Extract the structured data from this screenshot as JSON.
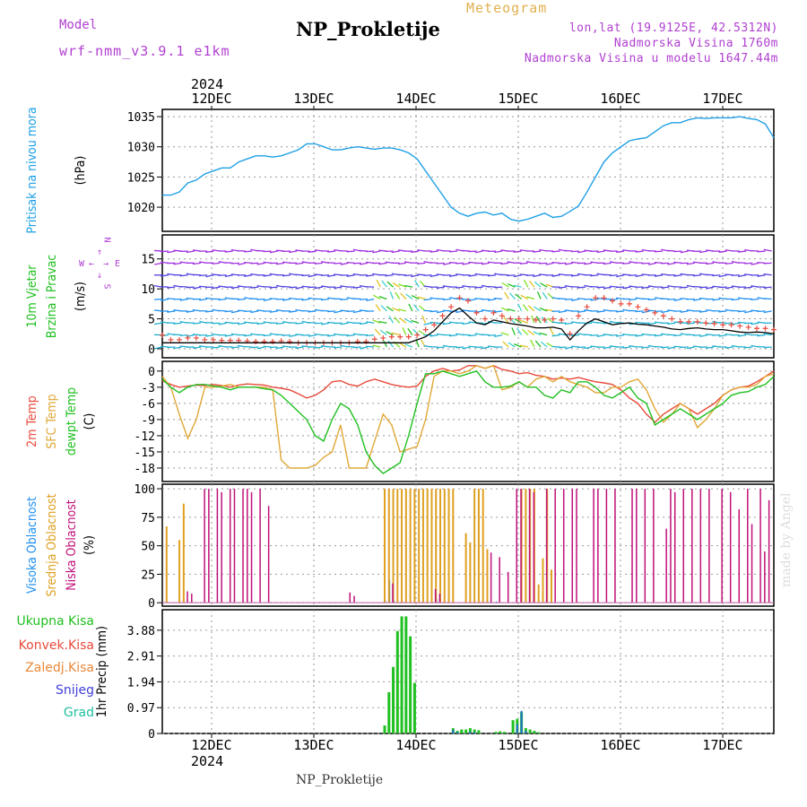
{
  "header": {
    "title": "NP_Prokletije",
    "meteogram_label": "Meteogram",
    "model_label": "Model",
    "model_value": "wrf-nmm_v3.9.1 e1km",
    "lonlat": "lon,lat (19.9125E, 42.5312N)",
    "elevation": "Nadmorska Visina 1760m",
    "model_elevation": "Nadmorska Visina u modelu 1647.44m"
  },
  "footer": {
    "station": "NP_Prokletije",
    "credit": "made by Angel"
  },
  "wind_key": {
    "north": "N",
    "south": "S",
    "west": "W",
    "east": "E"
  },
  "colors": {
    "pressure": "#1ea0e6",
    "temp2m": "#e84a3c",
    "sfcTemp": "#e0a838",
    "dewpt": "#20c020",
    "high_cloud": "#2090f0",
    "mid_cloud": "#e0a020",
    "low_cloud": "#c0107a",
    "precip_total": "#20c020",
    "precip_grad": "#2070d0",
    "wind_mean": "#000000",
    "wind_gust": "#e84a3c"
  },
  "chart_data": [
    {
      "type": "line",
      "panel": "pressure",
      "ylabel": [
        "Pritisak na nivou mora",
        "(hPa)"
      ],
      "ylabel_colors": [
        "#1ea0e6",
        "#000000"
      ],
      "yticks": [
        1020,
        1025,
        1030,
        1035
      ],
      "ylim": [
        1016,
        1036.2
      ],
      "top_year": "2024",
      "bottom_year": "2024",
      "date_labels": [
        "12DEC",
        "13DEC",
        "14DEC",
        "15DEC",
        "16DEC",
        "17DEC"
      ],
      "x_range_hours": [
        0,
        143
      ],
      "grid": true,
      "series": [
        {
          "values": [
            1022,
            1022,
            1022.5,
            1024,
            1024.5,
            1025.5,
            1026,
            1026.5,
            1026.5,
            1027.5,
            1028,
            1028.5,
            1028.5,
            1028.3,
            1028.5,
            1029,
            1029.5,
            1030.5,
            1030.5,
            1030,
            1029.5,
            1029.5,
            1029.8,
            1030,
            1029.8,
            1029.6,
            1029.8,
            1029.8,
            1029.5,
            1029,
            1028,
            1026,
            1024,
            1022,
            1020,
            1019,
            1018.5,
            1019,
            1019.2,
            1018.7,
            1019,
            1018,
            1017.7,
            1018,
            1018.5,
            1019,
            1018.3,
            1018.5,
            1019.3,
            1020.2,
            1022.5,
            1025,
            1027.5,
            1029,
            1030,
            1031,
            1031.3,
            1031.5,
            1032.5,
            1033.5,
            1034,
            1034,
            1034.5,
            1034.8,
            1034.7,
            1034.8,
            1034.8,
            1034.8,
            1035,
            1034.7,
            1034.5,
            1033.8,
            1031.5
          ]
        }
      ]
    },
    {
      "type": "line",
      "panel": "wind",
      "ylabel": [
        "10m Vjetar",
        "Brzina i Pravac",
        "(m/s)"
      ],
      "ylabel_colors": [
        "#20c020",
        "#20c020",
        "#000000"
      ],
      "yticks": [
        0,
        5,
        10,
        15
      ],
      "ylim": [
        -1.5,
        19
      ],
      "grid": true,
      "series": [
        {
          "name": "mean",
          "values": [
            1,
            1,
            1,
            1,
            1,
            1,
            1,
            1,
            1,
            1,
            1,
            1,
            1,
            1,
            1,
            1,
            1,
            1,
            1,
            1,
            1,
            1,
            1,
            1,
            1,
            1,
            1,
            1,
            1,
            1,
            1.5,
            2,
            3,
            4.5,
            6,
            6.8,
            5.5,
            4.3,
            4,
            4.8,
            4.5,
            4.2,
            4,
            3.8,
            3.5,
            3.5,
            3.6,
            3.3,
            1.5,
            3,
            4.3,
            5,
            4.5,
            4,
            4.2,
            4.3,
            4.1,
            4,
            3.8,
            3.6,
            3.3,
            3.2,
            3.4,
            3.5,
            3.3,
            3.2,
            3.2,
            3,
            2.8,
            2.7,
            2.8,
            2.7,
            2.5
          ]
        },
        {
          "name": "gust",
          "values": [
            2.3,
            1.5,
            1.5,
            1.8,
            1.8,
            1.5,
            1.5,
            1.4,
            1.4,
            1.4,
            1.3,
            1.2,
            1.2,
            1.2,
            1.3,
            1.2,
            1,
            1,
            1,
            1,
            1,
            1,
            1,
            1.2,
            1.2,
            1.6,
            1.8,
            2,
            2,
            2,
            2.3,
            3.2,
            4,
            5.5,
            7,
            8.5,
            8,
            6,
            5,
            6,
            5.5,
            5,
            5,
            5,
            4.8,
            4.8,
            5,
            4.8,
            2.5,
            5.5,
            7,
            8.5,
            8.5,
            8,
            7.5,
            7.5,
            7,
            6.5,
            6,
            5.5,
            5,
            4.5,
            4.5,
            4.5,
            4.3,
            4.2,
            4,
            4,
            3.8,
            3.6,
            3.4,
            3.4,
            3.2
          ]
        }
      ]
    },
    {
      "type": "line",
      "panel": "temperature",
      "ylabel": [
        "2m Temp",
        "SFC Temp",
        "dewpt Temp",
        "(C)"
      ],
      "ylabel_colors": [
        "#e84a3c",
        "#e0a838",
        "#20c020",
        "#000000"
      ],
      "yticks": [
        0,
        -3,
        -6,
        -9,
        -12,
        -15,
        -18
      ],
      "ylim": [
        -20.5,
        1.8
      ],
      "grid": true,
      "series": [
        {
          "name": "2m Temp",
          "values": [
            -1.8,
            -2.5,
            -3,
            -2.8,
            -2.6,
            -2.7,
            -2.5,
            -2.7,
            -3,
            -2.6,
            -2.4,
            -2.5,
            -2.6,
            -3,
            -3.2,
            -3.5,
            -4.2,
            -5,
            -4.5,
            -3.5,
            -2,
            -1.8,
            -2.5,
            -2.8,
            -2,
            -1.5,
            -2,
            -2.5,
            -2.8,
            -3,
            -2.8,
            -1,
            0,
            0.5,
            0,
            0.2,
            1,
            1,
            0.5,
            1,
            0.3,
            0,
            -0.5,
            -0.3,
            -0.8,
            -1,
            -1.5,
            -1.3,
            -1.5,
            -1.2,
            -1.6,
            -2,
            -2.2,
            -2.5,
            -3.5,
            -5,
            -6,
            -8,
            -9.5,
            -8,
            -7,
            -6,
            -7,
            -8,
            -7,
            -6,
            -4.5,
            -3.5,
            -3,
            -2.8,
            -2,
            -1,
            0
          ]
        },
        {
          "name": "SFC Temp",
          "values": [
            -1,
            -3,
            -8,
            -12.5,
            -9,
            -3,
            -3,
            -2.8,
            -2.5,
            -3,
            -3,
            -3,
            -3,
            -3.5,
            -16.5,
            -18,
            -18,
            -18,
            -17.5,
            -16,
            -15,
            -10,
            -18,
            -18,
            -18,
            -13,
            -8,
            -10,
            -15,
            -14.5,
            -14,
            -9,
            -1,
            0,
            0,
            -0.5,
            0,
            1,
            0.5,
            1,
            -3.5,
            -3,
            -2,
            -3,
            -1.5,
            -1,
            -2,
            -1,
            -2,
            -2.5,
            -3,
            -4,
            -4,
            -3,
            -3,
            -2,
            -1.5,
            -3.5,
            -7,
            -9.5,
            -8,
            -6,
            -7,
            -10.5,
            -9,
            -7,
            -4.5,
            -3.5,
            -3,
            -3,
            -2.5,
            -1,
            -0.5
          ]
        },
        {
          "name": "dewpt Temp",
          "values": [
            -1.5,
            -3,
            -4,
            -3,
            -2.5,
            -2.5,
            -2.8,
            -3,
            -3.5,
            -3,
            -3,
            -3,
            -3.3,
            -3.5,
            -4.5,
            -6,
            -7.5,
            -9,
            -12,
            -13,
            -9,
            -6,
            -7,
            -10,
            -15,
            -17.5,
            -19,
            -18,
            -17,
            -12,
            -6,
            -0.5,
            -0.5,
            0,
            -0.5,
            -1,
            -0.5,
            0,
            -2,
            -3,
            -3,
            -2.8,
            -2,
            -3,
            -3,
            -4.5,
            -5,
            -3.5,
            -4,
            -2,
            -2,
            -3,
            -4.5,
            -5,
            -4,
            -3,
            -5,
            -6,
            -10,
            -9,
            -8,
            -7,
            -8,
            -9,
            -8,
            -7,
            -6,
            -4.5,
            -4,
            -3.8,
            -3,
            -2.5,
            -1
          ]
        }
      ]
    },
    {
      "type": "bar",
      "panel": "cloud",
      "ylabel": [
        "Visoka Oblacnost",
        "Srednja Oblacnost",
        "Niska Oblacnost",
        "(%)"
      ],
      "ylabel_colors": [
        "#2090f0",
        "#e0a020",
        "#c0107a",
        "#000000"
      ],
      "yticks": [
        0,
        25,
        50,
        75,
        100
      ],
      "ylim": [
        -3,
        104
      ],
      "grid": true,
      "series": [
        {
          "name": "Visoka Oblacnost",
          "values": [
            [
              52,
              2
            ],
            [
              53,
              20
            ],
            [
              54,
              2
            ],
            [
              64,
              3
            ],
            [
              78,
              1
            ]
          ]
        },
        {
          "name": "Srednja Oblacnost",
          "values": [
            [
              1,
              67
            ],
            [
              4,
              55
            ],
            [
              5,
              87
            ],
            [
              52,
              100
            ],
            [
              53,
              100
            ],
            [
              54,
              100
            ],
            [
              55,
              100
            ],
            [
              56,
              100
            ],
            [
              57,
              100
            ],
            [
              58,
              100
            ],
            [
              59,
              100
            ],
            [
              60,
              100
            ],
            [
              61,
              100
            ],
            [
              62,
              100
            ],
            [
              63,
              100
            ],
            [
              64,
              100
            ],
            [
              65,
              100
            ],
            [
              66,
              100
            ],
            [
              67,
              100
            ],
            [
              68,
              100
            ],
            [
              71,
              61
            ],
            [
              72,
              53
            ],
            [
              73,
              100
            ],
            [
              74,
              100
            ],
            [
              75,
              100
            ],
            [
              76,
              47
            ],
            [
              84,
              100
            ],
            [
              85,
              100
            ],
            [
              86,
              100
            ],
            [
              87,
              100
            ],
            [
              88,
              16
            ],
            [
              89,
              39
            ],
            [
              90,
              100
            ],
            [
              91,
              29
            ]
          ]
        },
        {
          "name": "Niska Oblacnost",
          "values": [
            [
              6,
              10
            ],
            [
              7,
              8
            ],
            [
              10,
              100
            ],
            [
              11,
              100
            ],
            [
              13,
              100
            ],
            [
              14,
              97
            ],
            [
              16,
              100
            ],
            [
              17,
              100
            ],
            [
              19,
              100
            ],
            [
              20,
              100
            ],
            [
              21,
              97
            ],
            [
              23,
              100
            ],
            [
              25,
              85
            ],
            [
              44,
              9
            ],
            [
              45,
              6
            ],
            [
              54,
              17
            ],
            [
              64,
              12
            ],
            [
              65,
              8
            ],
            [
              77,
              44
            ],
            [
              79,
              40
            ],
            [
              81,
              27
            ],
            [
              83,
              100
            ],
            [
              84,
              100
            ],
            [
              86,
              100
            ],
            [
              87,
              97
            ],
            [
              90,
              100
            ],
            [
              92,
              100
            ],
            [
              94,
              100
            ],
            [
              96,
              100
            ],
            [
              97,
              100
            ],
            [
              101,
              100
            ],
            [
              102,
              100
            ],
            [
              104,
              100
            ],
            [
              106,
              100
            ],
            [
              110,
              100
            ],
            [
              111,
              100
            ],
            [
              113,
              100
            ],
            [
              115,
              100
            ],
            [
              118,
              65
            ],
            [
              119,
              100
            ],
            [
              120,
              97
            ],
            [
              122,
              100
            ],
            [
              124,
              100
            ],
            [
              126,
              100
            ],
            [
              128,
              100
            ],
            [
              131,
              100
            ],
            [
              133,
              97
            ],
            [
              135,
              82
            ],
            [
              137,
              100
            ],
            [
              138,
              69
            ],
            [
              140,
              100
            ],
            [
              141,
              45
            ],
            [
              142,
              90
            ]
          ]
        }
      ]
    },
    {
      "type": "bar",
      "panel": "precip",
      "ylabel": [
        "1hr Precip (mm)"
      ],
      "ylabel_colors": [
        "#000000"
      ],
      "legend": [
        "Ukupna Kisa",
        "Konvek.Kisa",
        "Zaledj.Kisa",
        "Snijeg",
        "Grad"
      ],
      "legend_colors": [
        "#20c020",
        "#e84a3c",
        "#e8883a",
        "#4040d8",
        "#20c0a0"
      ],
      "yticks": [
        0,
        0.97,
        1.94,
        2.91,
        3.88
      ],
      "ylim": [
        0,
        4.65
      ],
      "grid": true,
      "series": [
        {
          "name": "Ukupna Kisa",
          "values": [
            [
              52,
              0.3
            ],
            [
              53,
              1.55
            ],
            [
              54,
              2.5
            ],
            [
              55,
              3.85
            ],
            [
              56,
              4.4
            ],
            [
              57,
              4.4
            ],
            [
              58,
              3.65
            ],
            [
              59,
              1.9
            ],
            [
              68,
              0.2
            ],
            [
              69,
              0.1
            ],
            [
              70,
              0.15
            ],
            [
              71,
              0.15
            ],
            [
              72,
              0.2
            ],
            [
              73,
              0.15
            ],
            [
              74,
              0.12
            ],
            [
              78,
              0.06
            ],
            [
              79,
              0.08
            ],
            [
              80,
              0.06
            ],
            [
              82,
              0.5
            ],
            [
              83,
              0.55
            ],
            [
              84,
              0.8
            ],
            [
              85,
              0.2
            ],
            [
              86,
              0.15
            ],
            [
              87,
              0.1
            ],
            [
              88,
              0.05
            ]
          ]
        },
        {
          "name": "Grad",
          "values": [
            [
              68,
              0.14
            ],
            [
              69,
              0.05
            ],
            [
              72,
              0.07
            ],
            [
              73,
              0.05
            ],
            [
              83,
              0.35
            ],
            [
              84,
              0.85
            ],
            [
              85,
              0.1
            ]
          ]
        }
      ]
    }
  ]
}
